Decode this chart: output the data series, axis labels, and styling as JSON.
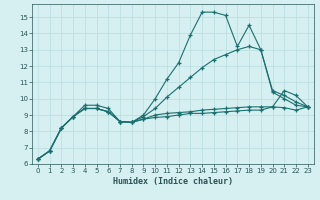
{
  "xlabel": "Humidex (Indice chaleur)",
  "bg_color": "#d6eff0",
  "grid_color": "#b8dde0",
  "line_color": "#1a7070",
  "xlim": [
    -0.5,
    23.5
  ],
  "ylim": [
    6,
    15.8
  ],
  "xticks": [
    0,
    1,
    2,
    3,
    4,
    5,
    6,
    7,
    8,
    9,
    10,
    11,
    12,
    13,
    14,
    15,
    16,
    17,
    18,
    19,
    20,
    21,
    22,
    23
  ],
  "yticks": [
    6,
    7,
    8,
    9,
    10,
    11,
    12,
    13,
    14,
    15
  ],
  "series": [
    {
      "x": [
        0,
        1,
        2,
        3,
        4,
        5,
        6,
        7,
        8,
        9,
        10,
        11,
        12,
        13,
        14,
        15,
        16,
        17,
        18,
        19,
        20,
        21,
        22,
        23
      ],
      "y": [
        6.3,
        6.8,
        8.2,
        8.9,
        9.6,
        9.6,
        9.4,
        8.6,
        8.55,
        9.0,
        10.0,
        11.2,
        12.2,
        13.9,
        15.3,
        15.3,
        15.1,
        13.2,
        14.5,
        13.0,
        10.5,
        10.2,
        9.8,
        9.5
      ]
    },
    {
      "x": [
        0,
        1,
        2,
        3,
        4,
        5,
        6,
        7,
        8,
        9,
        10,
        11,
        12,
        13,
        14,
        15,
        16,
        17,
        18,
        19,
        20,
        21,
        22,
        23
      ],
      "y": [
        6.3,
        6.8,
        8.2,
        8.9,
        9.4,
        9.4,
        9.2,
        8.6,
        8.55,
        8.9,
        9.4,
        10.1,
        10.7,
        11.3,
        11.9,
        12.4,
        12.7,
        13.0,
        13.2,
        13.0,
        10.4,
        10.0,
        9.6,
        9.5
      ]
    },
    {
      "x": [
        0,
        1,
        2,
        3,
        4,
        5,
        6,
        7,
        8,
        9,
        10,
        11,
        12,
        13,
        14,
        15,
        16,
        17,
        18,
        19,
        20,
        21,
        22,
        23
      ],
      "y": [
        6.3,
        6.8,
        8.2,
        8.9,
        9.4,
        9.4,
        9.2,
        8.6,
        8.55,
        8.75,
        9.0,
        9.1,
        9.15,
        9.2,
        9.3,
        9.35,
        9.4,
        9.45,
        9.5,
        9.5,
        9.5,
        9.45,
        9.3,
        9.5
      ]
    },
    {
      "x": [
        0,
        1,
        2,
        3,
        4,
        5,
        6,
        7,
        8,
        9,
        10,
        11,
        12,
        13,
        14,
        15,
        16,
        17,
        18,
        19,
        20,
        21,
        22,
        23
      ],
      "y": [
        6.3,
        6.8,
        8.2,
        8.9,
        9.4,
        9.4,
        9.2,
        8.6,
        8.55,
        8.75,
        8.85,
        8.9,
        9.0,
        9.1,
        9.1,
        9.15,
        9.2,
        9.25,
        9.3,
        9.3,
        9.5,
        10.5,
        10.2,
        9.5
      ]
    }
  ]
}
